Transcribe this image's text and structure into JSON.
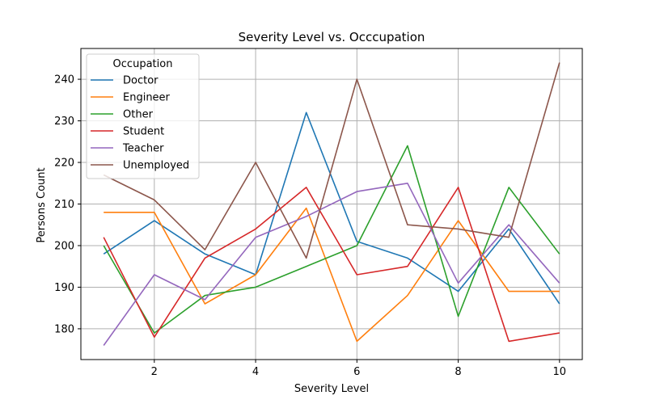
{
  "chart_data": {
    "type": "line",
    "title": "Severity Level vs. Occcupation",
    "xlabel": "Severity Level",
    "ylabel": "Persons Count",
    "xlim": [
      0.55,
      10.45
    ],
    "ylim": [
      172.6,
      247.4
    ],
    "xticks": [
      2,
      4,
      6,
      8,
      10
    ],
    "yticks": [
      180,
      190,
      200,
      210,
      220,
      230,
      240
    ],
    "grid": true,
    "legend": {
      "title": "Occupation",
      "placement": "top-left"
    },
    "x": [
      1,
      2,
      3,
      4,
      5,
      6,
      7,
      8,
      9,
      10
    ],
    "series": [
      {
        "name": "Doctor",
        "color": "#1f77b4",
        "values": [
          198,
          206,
          198,
          193,
          232,
          201,
          197,
          189,
          204,
          186
        ]
      },
      {
        "name": "Engineer",
        "color": "#ff7f0e",
        "values": [
          208,
          208,
          186,
          193,
          209,
          177,
          188,
          206,
          189,
          189
        ]
      },
      {
        "name": "Other",
        "color": "#2ca02c",
        "values": [
          200,
          179,
          188,
          190,
          195,
          200,
          224,
          183,
          214,
          198
        ]
      },
      {
        "name": "Student",
        "color": "#d62728",
        "values": [
          202,
          178,
          197,
          204,
          214,
          193,
          195,
          214,
          177,
          179
        ]
      },
      {
        "name": "Teacher",
        "color": "#9467bd",
        "values": [
          176,
          193,
          187,
          202,
          207,
          213,
          215,
          191,
          205,
          191
        ]
      },
      {
        "name": "Unemployed",
        "color": "#8c564b",
        "values": [
          217,
          211,
          199,
          220,
          197,
          240,
          205,
          204,
          202,
          244
        ]
      }
    ]
  }
}
